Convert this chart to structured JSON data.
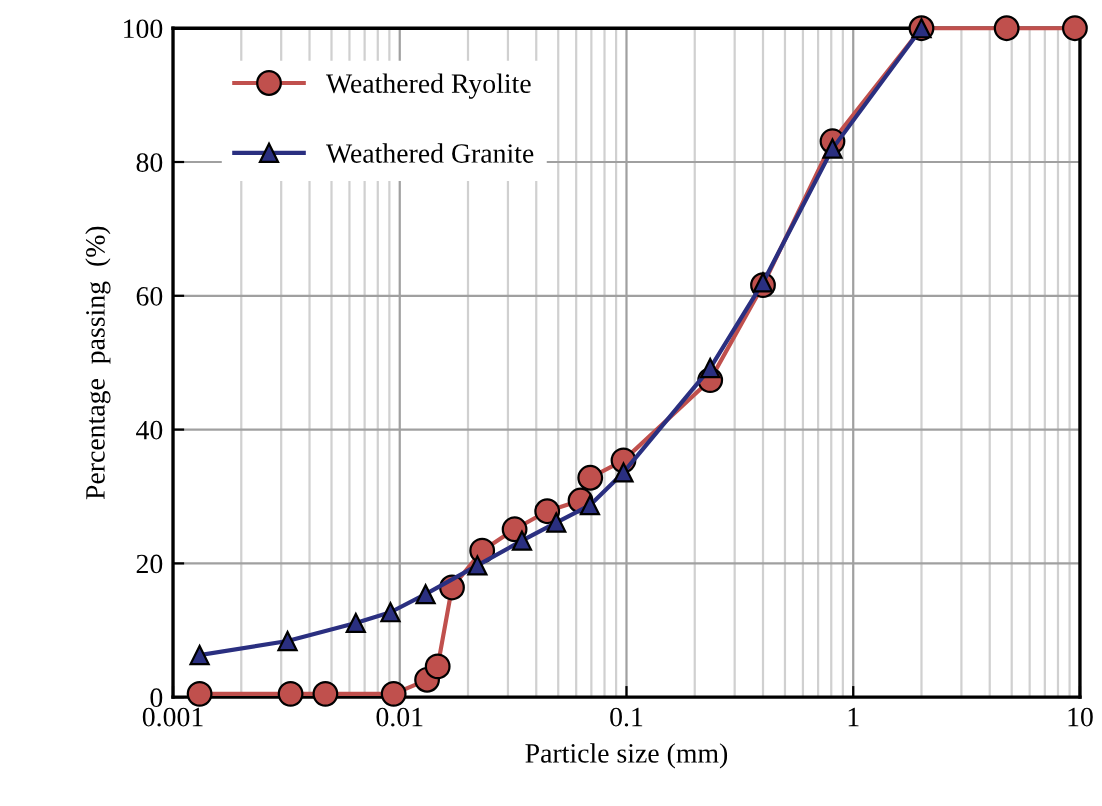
{
  "chart_data": {
    "type": "line",
    "xlabel": "Particle size (mm)",
    "ylabel": "Percentage  passing  (%)",
    "log": "x",
    "grid": true,
    "legend": "top left",
    "xlim": [
      0.001,
      10
    ],
    "xticks": [
      0.001,
      0.01,
      0.1,
      1,
      10
    ],
    "ylim": [
      0,
      100
    ],
    "yticks": [
      0,
      20,
      40,
      60,
      80,
      100
    ],
    "series": [
      {
        "name": "Weathered Ryolite",
        "color": "#c0504d",
        "marker": "circle",
        "x": [
          0.00131,
          0.0033,
          0.0047,
          0.0094,
          0.0132,
          0.0147,
          0.017,
          0.0231,
          0.0321,
          0.0447,
          0.0627,
          0.0692,
          0.097,
          0.234,
          0.4,
          0.81,
          2,
          4.75,
          9.5
        ],
        "values": [
          0.5,
          0.5,
          0.5,
          0.5,
          2.6,
          4.6,
          16.4,
          21.9,
          25.1,
          27.8,
          29.4,
          32.8,
          35.4,
          47.4,
          61.6,
          83.1,
          100,
          100,
          100
        ]
      },
      {
        "name": "Weathered Granite",
        "color": "#2a2f80",
        "marker": "triangle",
        "x": [
          0.00131,
          0.0032,
          0.0064,
          0.0091,
          0.013,
          0.022,
          0.0346,
          0.049,
          0.069,
          0.097,
          0.234,
          0.4,
          0.81,
          2
        ],
        "values": [
          6.3,
          8.4,
          11.1,
          12.7,
          15.4,
          19.7,
          23.4,
          26.1,
          28.7,
          33.6,
          49.2,
          62.0,
          82.0,
          100
        ]
      }
    ]
  }
}
